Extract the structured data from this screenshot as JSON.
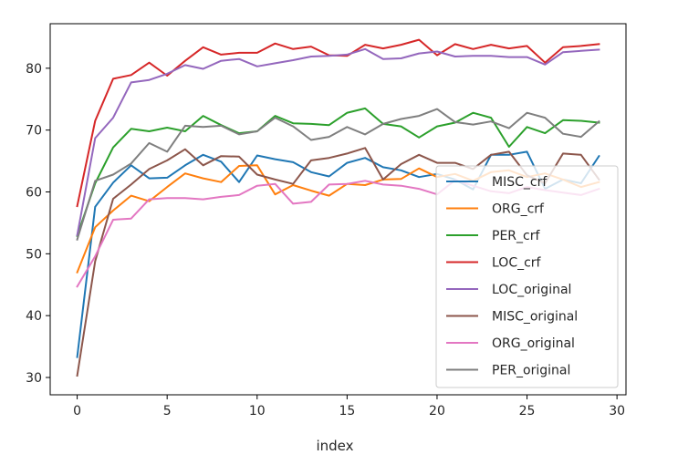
{
  "chart_data": {
    "type": "line",
    "title": "",
    "xlabel": "index",
    "ylabel": "",
    "xlim": [
      -1.5,
      30.5
    ],
    "ylim": [
      27.2,
      87.2
    ],
    "xticks": [
      "0",
      "5",
      "10",
      "15",
      "20",
      "25",
      "30"
    ],
    "yticks": [
      "30",
      "40",
      "50",
      "60",
      "70",
      "80"
    ],
    "grid": false,
    "legend_position": "lower-right",
    "x": [
      0,
      1,
      2,
      3,
      4,
      5,
      6,
      7,
      8,
      9,
      10,
      11,
      12,
      13,
      14,
      15,
      16,
      17,
      18,
      19,
      20,
      21,
      22,
      23,
      24,
      25,
      26,
      27,
      28,
      29
    ],
    "series": [
      {
        "name": "MISC_crf",
        "color": "#1f77b4",
        "values": [
          33.3,
          57.6,
          61.5,
          64.3,
          62.2,
          62.3,
          64.3,
          66.0,
          64.9,
          61.6,
          65.9,
          65.3,
          64.8,
          63.2,
          62.5,
          64.7,
          65.5,
          64.0,
          63.5,
          62.4,
          62.9,
          62.0,
          60.4,
          66.0,
          66.0,
          66.5,
          60.5,
          62.0,
          61.4,
          65.8
        ]
      },
      {
        "name": "ORG_crf",
        "color": "#ff7f0e",
        "values": [
          47.0,
          54.3,
          57.0,
          59.4,
          58.5,
          60.8,
          63.0,
          62.2,
          61.6,
          64.2,
          64.3,
          59.6,
          61.1,
          60.2,
          59.4,
          61.3,
          61.1,
          62.0,
          62.1,
          63.8,
          62.4,
          62.9,
          61.8,
          63.2,
          63.5,
          62.4,
          63.0,
          62.0,
          60.8,
          61.6
        ]
      },
      {
        "name": "PER_crf",
        "color": "#2ca02c",
        "values": [
          52.9,
          61.4,
          67.2,
          70.2,
          69.8,
          70.4,
          69.8,
          72.3,
          70.8,
          69.5,
          69.8,
          72.3,
          71.1,
          71.0,
          70.8,
          72.8,
          73.5,
          71.0,
          70.6,
          68.8,
          70.6,
          71.2,
          72.8,
          72.0,
          67.3,
          70.5,
          69.5,
          71.6,
          71.5,
          71.2
        ]
      },
      {
        "name": "LOC_crf",
        "color": "#d62728",
        "values": [
          57.7,
          71.5,
          78.3,
          78.9,
          80.9,
          78.8,
          81.2,
          83.4,
          82.2,
          82.5,
          82.5,
          84.0,
          83.1,
          83.5,
          82.1,
          82.0,
          83.8,
          83.2,
          83.8,
          84.6,
          82.1,
          83.9,
          83.1,
          83.8,
          83.2,
          83.6,
          80.9,
          83.4,
          83.6,
          83.9
        ]
      },
      {
        "name": "LOC_original",
        "color": "#9467bd",
        "values": [
          53.0,
          68.7,
          72.0,
          77.7,
          78.1,
          79.1,
          80.5,
          79.9,
          81.2,
          81.5,
          80.3,
          80.8,
          81.3,
          81.9,
          82.0,
          82.2,
          83.1,
          81.5,
          81.6,
          82.4,
          82.7,
          81.9,
          82.0,
          82.0,
          81.8,
          81.8,
          80.6,
          82.6,
          82.8,
          83.0
        ]
      },
      {
        "name": "MISC_original",
        "color": "#8c564b",
        "values": [
          30.3,
          48.8,
          58.9,
          61.2,
          63.7,
          65.1,
          66.9,
          64.3,
          65.8,
          65.7,
          62.8,
          62.0,
          61.3,
          65.1,
          65.5,
          66.2,
          67.1,
          62.0,
          64.5,
          66.0,
          64.7,
          64.7,
          63.7,
          66.0,
          66.5,
          62.7,
          61.4,
          66.2,
          66.0,
          62.0
        ]
      },
      {
        "name": "ORG_original",
        "color": "#e377c2",
        "values": [
          44.7,
          49.6,
          55.5,
          55.7,
          58.8,
          59.0,
          59.0,
          58.8,
          59.2,
          59.5,
          61.0,
          61.3,
          58.1,
          58.4,
          61.2,
          61.3,
          61.8,
          61.2,
          61.0,
          60.5,
          59.6,
          61.9,
          61.0,
          60.1,
          59.8,
          60.8,
          60.3,
          59.9,
          59.5,
          60.5
        ]
      },
      {
        "name": "PER_original",
        "color": "#7f7f7f",
        "values": [
          52.3,
          61.8,
          62.8,
          64.6,
          67.9,
          66.5,
          70.7,
          70.5,
          70.7,
          69.3,
          69.8,
          72.0,
          70.6,
          68.4,
          68.9,
          70.5,
          69.3,
          71.0,
          71.8,
          72.3,
          73.4,
          71.3,
          70.9,
          71.4,
          70.3,
          72.8,
          72.0,
          69.4,
          68.9,
          71.4
        ]
      }
    ]
  }
}
